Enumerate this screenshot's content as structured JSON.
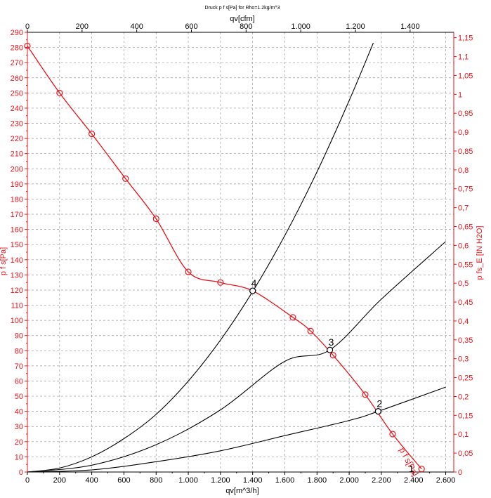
{
  "chart_data": {
    "type": "line",
    "title": "Druck p f s[Pa] for Rho=1.2kg/m^3",
    "xlabel_bottom": "qv[m^3/h]",
    "xlabel_top": "qv[cfm]",
    "ylabel_left": "p f s[Pa]",
    "ylabel_right": "p fs_E [IN H2O]",
    "xlim": [
      0,
      2650
    ],
    "ylim": [
      0,
      290
    ],
    "x_bottom_ticks": [
      0,
      200,
      400,
      600,
      800,
      1000,
      1200,
      1400,
      1600,
      1800,
      2000,
      2200,
      2400,
      2600
    ],
    "x_bottom_tick_labels": [
      "0",
      "200",
      "400",
      "600",
      "800",
      "1.000",
      "1.200",
      "1.400",
      "1.600",
      "1.800",
      "2.000",
      "2.200",
      "2.400",
      "2.600"
    ],
    "x_top_ticks": [
      0,
      200,
      400,
      600,
      800,
      1000,
      1200,
      1400
    ],
    "x_top_tick_labels": [
      "0",
      "200",
      "400",
      "600",
      "800",
      "1.000",
      "1.200",
      "1.400"
    ],
    "y_left_ticks": [
      0,
      10,
      20,
      30,
      40,
      50,
      60,
      70,
      80,
      90,
      100,
      110,
      120,
      130,
      140,
      150,
      160,
      170,
      180,
      190,
      200,
      210,
      220,
      230,
      240,
      250,
      260,
      270,
      280,
      290
    ],
    "y_right_ticks": [
      0,
      0.05,
      0.1,
      0.15,
      0.2,
      0.25,
      0.3,
      0.35,
      0.4,
      0.45,
      0.5,
      0.55,
      0.6,
      0.65,
      0.7,
      0.75,
      0.8,
      0.85,
      0.9,
      0.95,
      1,
      1.05,
      1.1,
      1.15
    ],
    "y_right_tick_labels": [
      "0",
      "0,05",
      "0,1",
      "0,15",
      "0,2",
      "0,25",
      "0,3",
      "0,35",
      "0,4",
      "0,45",
      "0,5",
      "0,55",
      "0,6",
      "0,65",
      "0,7",
      "0,75",
      "0,8",
      "0,85",
      "0,9",
      "0,95",
      "1",
      "1,05",
      "1,1",
      "1,15"
    ],
    "grid": true,
    "fan_curve": {
      "name": "p f s[Pa]",
      "color": "#e8141c",
      "x": [
        0,
        200,
        400,
        610,
        800,
        1000,
        1200,
        1400,
        1650,
        1760,
        1900,
        2100,
        2270,
        2450
      ],
      "y": [
        281,
        250,
        223,
        193.5,
        167,
        132,
        125,
        119.5,
        102,
        93,
        77,
        51,
        25,
        2
      ]
    },
    "system_curves": [
      {
        "label": "4",
        "color": "#000000",
        "x": [
          0,
          200,
          400,
          600,
          800,
          1000,
          1200,
          1400,
          1600,
          1800,
          2000,
          2150
        ],
        "y": [
          0,
          2.6,
          10,
          22,
          38,
          60,
          87,
          119,
          156,
          198,
          245,
          283
        ]
      },
      {
        "label": "3",
        "color": "#000000",
        "x": [
          0,
          400,
          800,
          1200,
          1600,
          1880,
          2200,
          2600
        ],
        "y": [
          0,
          4.5,
          18,
          41,
          73,
          80.5,
          114,
          152
        ]
      },
      {
        "label": "2",
        "color": "#000000",
        "x": [
          0,
          400,
          800,
          1200,
          1600,
          2000,
          2180,
          2600
        ],
        "y": [
          0,
          1.4,
          6.8,
          14,
          24,
          34,
          40,
          56
        ]
      }
    ],
    "operating_points": [
      {
        "label": "4",
        "x": 1400,
        "y": 119.5
      },
      {
        "label": "3",
        "x": 1880,
        "y": 80.5
      },
      {
        "label": "2",
        "x": 2180,
        "y": 40
      }
    ],
    "curve_label": "p f s[Pa]",
    "corner_label": "1"
  }
}
